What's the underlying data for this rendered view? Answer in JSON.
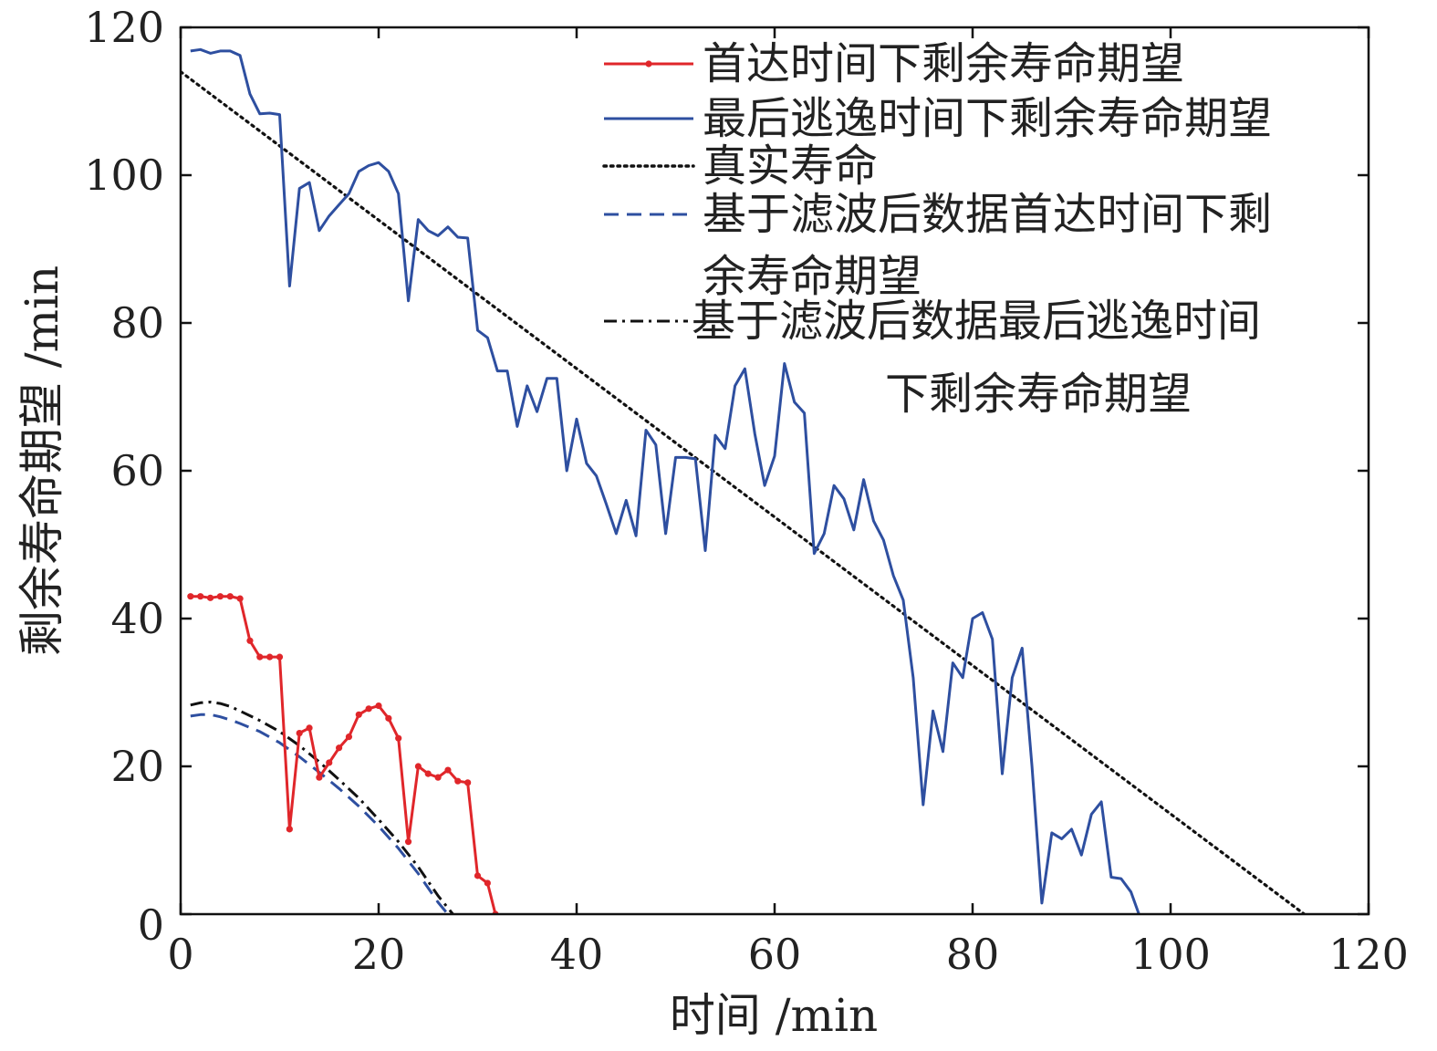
{
  "chart_data": {
    "type": "line",
    "title": "",
    "xlabel": "时间  /min",
    "ylabel": "剩余寿命期望  /min",
    "xlim": [
      0,
      120
    ],
    "ylim": [
      0,
      120
    ],
    "xticks": [
      "0",
      "20",
      "40",
      "60",
      "80",
      "100",
      "120"
    ],
    "yticks": [
      "0",
      "20",
      "40",
      "60",
      "80",
      "100",
      "120"
    ],
    "grid": false,
    "legend_position": "top-right",
    "series": [
      {
        "name": "首达时间下剩余寿命期望",
        "legend_lines": [
          "首达时间下剩余寿命期望"
        ],
        "color": "#e0262a",
        "style": "solid-marker",
        "x": [
          1,
          2,
          3,
          4,
          5,
          6,
          7,
          8,
          9,
          10,
          11,
          12,
          13,
          14,
          15,
          16,
          17,
          18,
          19,
          20,
          21,
          22,
          23,
          24,
          25,
          26,
          27,
          28,
          29,
          30,
          31,
          31.8
        ],
        "y": [
          43,
          43,
          42.8,
          43,
          43,
          42.7,
          37,
          34.8,
          34.8,
          34.8,
          11.5,
          24.5,
          25.2,
          18.5,
          20.5,
          22.5,
          24,
          27,
          27.8,
          28.2,
          26.5,
          23.8,
          9.8,
          20,
          19,
          18.5,
          19.5,
          18,
          17.8,
          5.2,
          4.2,
          0
        ]
      },
      {
        "name": "最后逃逸时间下剩余寿命期望",
        "legend_lines": [
          "最后逃逸时间下剩余寿命期望"
        ],
        "color": "#2e4fa0",
        "style": "solid",
        "x": [
          1,
          2,
          3,
          4,
          5,
          6,
          7,
          8,
          9,
          10,
          11,
          12,
          13,
          14,
          15,
          16,
          17,
          18,
          19,
          20,
          21,
          22,
          23,
          24,
          25,
          26,
          27,
          28,
          29,
          30,
          31,
          32,
          33,
          34,
          35,
          36,
          37,
          38,
          39,
          40,
          41,
          42,
          43,
          44,
          45,
          46,
          47,
          48,
          49,
          50,
          51,
          52,
          53,
          54,
          55,
          56,
          57,
          58,
          59,
          60,
          61,
          62,
          63,
          64,
          65,
          66,
          67,
          68,
          69,
          70,
          71,
          72,
          73,
          74,
          75,
          76,
          77,
          78,
          79,
          80,
          81,
          82,
          83,
          84,
          85,
          86,
          87,
          88,
          89,
          90,
          91,
          92,
          93,
          94,
          95,
          96,
          96.8
        ],
        "y": [
          116.8,
          117,
          116.5,
          116.8,
          116.8,
          116.2,
          111,
          108.3,
          108.4,
          108.2,
          85,
          98.2,
          99,
          92.5,
          94.5,
          96,
          97.5,
          100.5,
          101.3,
          101.7,
          100.5,
          97.5,
          83,
          94,
          92.5,
          91.8,
          93,
          91.6,
          91.5,
          79,
          78,
          73.5,
          73.5,
          66,
          71.5,
          68,
          72.5,
          72.5,
          60,
          67,
          61,
          59.3,
          55.5,
          51.5,
          56,
          51.2,
          65.5,
          63.5,
          51.5,
          61.8,
          61.8,
          61.6,
          49.2,
          64.8,
          63,
          71.5,
          73.8,
          65,
          58,
          62,
          74.5,
          69.3,
          67.8,
          48.8,
          51.5,
          58,
          56.2,
          52,
          58.8,
          53.2,
          50.6,
          45.8,
          42.5,
          32,
          14.8,
          27.5,
          22,
          34,
          32,
          40,
          40.8,
          37.2,
          19,
          32,
          36,
          20,
          1.5,
          11,
          10.2,
          11.5,
          8,
          13.5,
          15.2,
          5,
          4.8,
          3,
          0
        ]
      },
      {
        "name": "真实寿命",
        "legend_lines": [
          "真实寿命"
        ],
        "color": "#111111",
        "style": "dotted",
        "x": [
          0,
          113.5
        ],
        "y": [
          114,
          0
        ]
      },
      {
        "name": "基于滤波后数据首达时间下剩余寿命期望",
        "legend_lines": [
          "基于滤波后数据首达时间下剩",
          "余寿命期望"
        ],
        "color": "#2e4fa0",
        "style": "dashed",
        "x": [
          1,
          2,
          3,
          4,
          5,
          6,
          8,
          10,
          12,
          14,
          16,
          18,
          20,
          22,
          24,
          26,
          27
        ],
        "y": [
          26.8,
          27,
          27,
          26.7,
          26.3,
          25.8,
          24.7,
          23.2,
          21.3,
          19.2,
          17,
          14.6,
          11.9,
          8.9,
          5.5,
          1.6,
          0
        ]
      },
      {
        "name": "基于滤波后数据最后逃逸时间下剩余寿命期望",
        "legend_lines": [
          "基于滤波后数据最后逃逸时间",
          "下剩余寿命期望"
        ],
        "color": "#111111",
        "style": "dashdot",
        "x": [
          1,
          2,
          3,
          4,
          5,
          6,
          8,
          10,
          12,
          14,
          16,
          18,
          20,
          22,
          24,
          26,
          27.5
        ],
        "y": [
          28.3,
          28.6,
          28.7,
          28.5,
          28.1,
          27.5,
          26.2,
          24.7,
          22.8,
          20.6,
          18.2,
          15.7,
          12.8,
          9.8,
          6.4,
          2.5,
          0
        ]
      }
    ]
  }
}
